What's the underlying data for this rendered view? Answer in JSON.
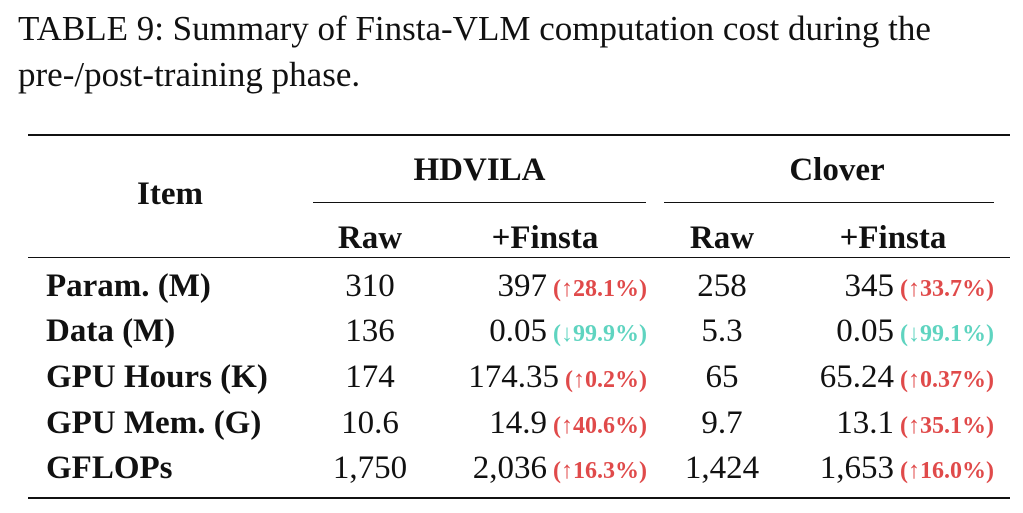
{
  "caption": "TABLE 9: Summary of Finsta-VLM computation cost during the pre-/post-training phase.",
  "table": {
    "item_header": "Item",
    "groups": [
      {
        "name": "HDVILA",
        "sub": [
          "Raw",
          "+Finsta"
        ]
      },
      {
        "name": "Clover",
        "sub": [
          "Raw",
          "+Finsta"
        ]
      }
    ],
    "rows": [
      {
        "label": "Param. (M)",
        "hdvila_raw": "310",
        "hdvila_finsta": "397",
        "hdvila_delta": "(↑28.1%)",
        "hdvila_dir": "up",
        "clover_raw": "258",
        "clover_finsta": "345",
        "clover_delta": "(↑33.7%)",
        "clover_dir": "up"
      },
      {
        "label": "Data (M)",
        "hdvila_raw": "136",
        "hdvila_finsta": "0.05",
        "hdvila_delta": "(↓99.9%)",
        "hdvila_dir": "down",
        "clover_raw": "5.3",
        "clover_finsta": "0.05",
        "clover_delta": "(↓99.1%)",
        "clover_dir": "down"
      },
      {
        "label": "GPU Hours (K)",
        "hdvila_raw": "174",
        "hdvila_finsta": "174.35",
        "hdvila_delta": "(↑0.2%)",
        "hdvila_dir": "up",
        "clover_raw": "65",
        "clover_finsta": "65.24",
        "clover_delta": "(↑0.37%)",
        "clover_dir": "up"
      },
      {
        "label": "GPU Mem. (G)",
        "hdvila_raw": "10.6",
        "hdvila_finsta": "14.9",
        "hdvila_delta": "(↑40.6%)",
        "hdvila_dir": "up",
        "clover_raw": "9.7",
        "clover_finsta": "13.1",
        "clover_delta": "(↑35.1%)",
        "clover_dir": "up"
      },
      {
        "label": "GFLOPs",
        "hdvila_raw": "1,750",
        "hdvila_finsta": "2,036",
        "hdvila_delta": "(↑16.3%)",
        "hdvila_dir": "up",
        "clover_raw": "1,424",
        "clover_finsta": "1,653",
        "clover_delta": "(↑16.0%)",
        "clover_dir": "up"
      }
    ]
  },
  "colors": {
    "increase": "#e04a4a",
    "decrease": "#5fd4c0"
  }
}
